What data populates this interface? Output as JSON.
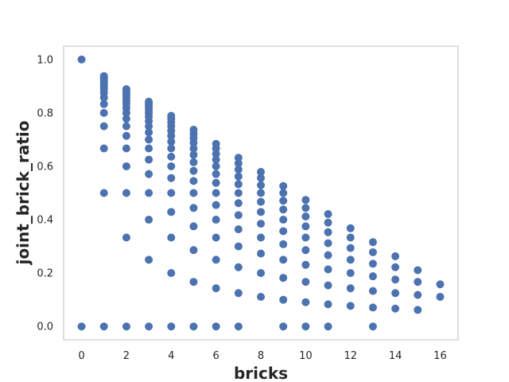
{
  "chart_data": {
    "type": "scatter",
    "title": "",
    "xlabel": "bricks",
    "ylabel": "joint_brick_ratio",
    "xlim": [
      -0.8,
      16.8
    ],
    "ylim": [
      -0.05,
      1.05
    ],
    "x_ticks": [
      0,
      2,
      4,
      6,
      8,
      10,
      12,
      14,
      16
    ],
    "x_tick_labels": [
      "0",
      "2",
      "4",
      "6",
      "8",
      "10",
      "12",
      "14",
      "16"
    ],
    "y_ticks": [
      0.0,
      0.2,
      0.4,
      0.6,
      0.8,
      1.0
    ],
    "y_tick_labels": [
      "0.0",
      "0.2",
      "0.4",
      "0.6",
      "0.8",
      "1.0"
    ],
    "grid": false,
    "marker_color": "#4c72b0",
    "points": [
      [
        0,
        1.0
      ],
      [
        0,
        0.0
      ],
      [
        1,
        0.0
      ],
      [
        1,
        0.5
      ],
      [
        1,
        0.667
      ],
      [
        1,
        0.75
      ],
      [
        1,
        0.8
      ],
      [
        1,
        0.833
      ],
      [
        1,
        0.857
      ],
      [
        1,
        0.875
      ],
      [
        1,
        0.889
      ],
      [
        1,
        0.9
      ],
      [
        1,
        0.909
      ],
      [
        1,
        0.917
      ],
      [
        1,
        0.923
      ],
      [
        1,
        0.929
      ],
      [
        1,
        0.933
      ],
      [
        1,
        0.938
      ],
      [
        2,
        0.0
      ],
      [
        2,
        0.333
      ],
      [
        2,
        0.5
      ],
      [
        2,
        0.6
      ],
      [
        2,
        0.667
      ],
      [
        2,
        0.714
      ],
      [
        2,
        0.75
      ],
      [
        2,
        0.778
      ],
      [
        2,
        0.8
      ],
      [
        2,
        0.818
      ],
      [
        2,
        0.833
      ],
      [
        2,
        0.846
      ],
      [
        2,
        0.857
      ],
      [
        2,
        0.867
      ],
      [
        2,
        0.875
      ],
      [
        2,
        0.882
      ],
      [
        2,
        0.889
      ],
      [
        3,
        0.0
      ],
      [
        3,
        0.25
      ],
      [
        3,
        0.4
      ],
      [
        3,
        0.5
      ],
      [
        3,
        0.571
      ],
      [
        3,
        0.625
      ],
      [
        3,
        0.667
      ],
      [
        3,
        0.7
      ],
      [
        3,
        0.727
      ],
      [
        3,
        0.75
      ],
      [
        3,
        0.769
      ],
      [
        3,
        0.786
      ],
      [
        3,
        0.8
      ],
      [
        3,
        0.812
      ],
      [
        3,
        0.824
      ],
      [
        3,
        0.833
      ],
      [
        3,
        0.842
      ],
      [
        4,
        0.0
      ],
      [
        4,
        0.2
      ],
      [
        4,
        0.333
      ],
      [
        4,
        0.429
      ],
      [
        4,
        0.5
      ],
      [
        4,
        0.556
      ],
      [
        4,
        0.6
      ],
      [
        4,
        0.636
      ],
      [
        4,
        0.667
      ],
      [
        4,
        0.692
      ],
      [
        4,
        0.714
      ],
      [
        4,
        0.733
      ],
      [
        4,
        0.75
      ],
      [
        4,
        0.765
      ],
      [
        4,
        0.778
      ],
      [
        4,
        0.789
      ],
      [
        5,
        0.0
      ],
      [
        5,
        0.167
      ],
      [
        5,
        0.286
      ],
      [
        5,
        0.375
      ],
      [
        5,
        0.444
      ],
      [
        5,
        0.5
      ],
      [
        5,
        0.545
      ],
      [
        5,
        0.583
      ],
      [
        5,
        0.615
      ],
      [
        5,
        0.643
      ],
      [
        5,
        0.667
      ],
      [
        5,
        0.688
      ],
      [
        5,
        0.706
      ],
      [
        5,
        0.722
      ],
      [
        5,
        0.737
      ],
      [
        6,
        0.0
      ],
      [
        6,
        0.143
      ],
      [
        6,
        0.25
      ],
      [
        6,
        0.333
      ],
      [
        6,
        0.4
      ],
      [
        6,
        0.455
      ],
      [
        6,
        0.5
      ],
      [
        6,
        0.538
      ],
      [
        6,
        0.571
      ],
      [
        6,
        0.6
      ],
      [
        6,
        0.625
      ],
      [
        6,
        0.647
      ],
      [
        6,
        0.667
      ],
      [
        6,
        0.684
      ],
      [
        7,
        0.0
      ],
      [
        7,
        0.125
      ],
      [
        7,
        0.222
      ],
      [
        7,
        0.3
      ],
      [
        7,
        0.364
      ],
      [
        7,
        0.417
      ],
      [
        7,
        0.462
      ],
      [
        7,
        0.5
      ],
      [
        7,
        0.533
      ],
      [
        7,
        0.562
      ],
      [
        7,
        0.588
      ],
      [
        7,
        0.611
      ],
      [
        7,
        0.632
      ],
      [
        8,
        0.111
      ],
      [
        8,
        0.2
      ],
      [
        8,
        0.273
      ],
      [
        8,
        0.333
      ],
      [
        8,
        0.385
      ],
      [
        8,
        0.429
      ],
      [
        8,
        0.467
      ],
      [
        8,
        0.5
      ],
      [
        8,
        0.529
      ],
      [
        8,
        0.556
      ],
      [
        8,
        0.579
      ],
      [
        9,
        0.0
      ],
      [
        9,
        0.1
      ],
      [
        9,
        0.182
      ],
      [
        9,
        0.25
      ],
      [
        9,
        0.308
      ],
      [
        9,
        0.357
      ],
      [
        9,
        0.4
      ],
      [
        9,
        0.438
      ],
      [
        9,
        0.471
      ],
      [
        9,
        0.5
      ],
      [
        9,
        0.526
      ],
      [
        10,
        0.0
      ],
      [
        10,
        0.091
      ],
      [
        10,
        0.167
      ],
      [
        10,
        0.231
      ],
      [
        10,
        0.286
      ],
      [
        10,
        0.333
      ],
      [
        10,
        0.375
      ],
      [
        10,
        0.412
      ],
      [
        10,
        0.444
      ],
      [
        10,
        0.474
      ],
      [
        11,
        0.0
      ],
      [
        11,
        0.083
      ],
      [
        11,
        0.154
      ],
      [
        11,
        0.214
      ],
      [
        11,
        0.267
      ],
      [
        11,
        0.312
      ],
      [
        11,
        0.353
      ],
      [
        11,
        0.389
      ],
      [
        11,
        0.421
      ],
      [
        12,
        0.077
      ],
      [
        12,
        0.143
      ],
      [
        12,
        0.2
      ],
      [
        12,
        0.25
      ],
      [
        12,
        0.294
      ],
      [
        12,
        0.333
      ],
      [
        12,
        0.368
      ],
      [
        13,
        0.0
      ],
      [
        13,
        0.071
      ],
      [
        13,
        0.133
      ],
      [
        13,
        0.188
      ],
      [
        13,
        0.235
      ],
      [
        13,
        0.278
      ],
      [
        13,
        0.316
      ],
      [
        14,
        0.067
      ],
      [
        14,
        0.125
      ],
      [
        14,
        0.176
      ],
      [
        14,
        0.222
      ],
      [
        14,
        0.263
      ],
      [
        15,
        0.062
      ],
      [
        15,
        0.118
      ],
      [
        15,
        0.167
      ],
      [
        15,
        0.211
      ],
      [
        16,
        0.111
      ],
      [
        16,
        0.158
      ]
    ]
  }
}
